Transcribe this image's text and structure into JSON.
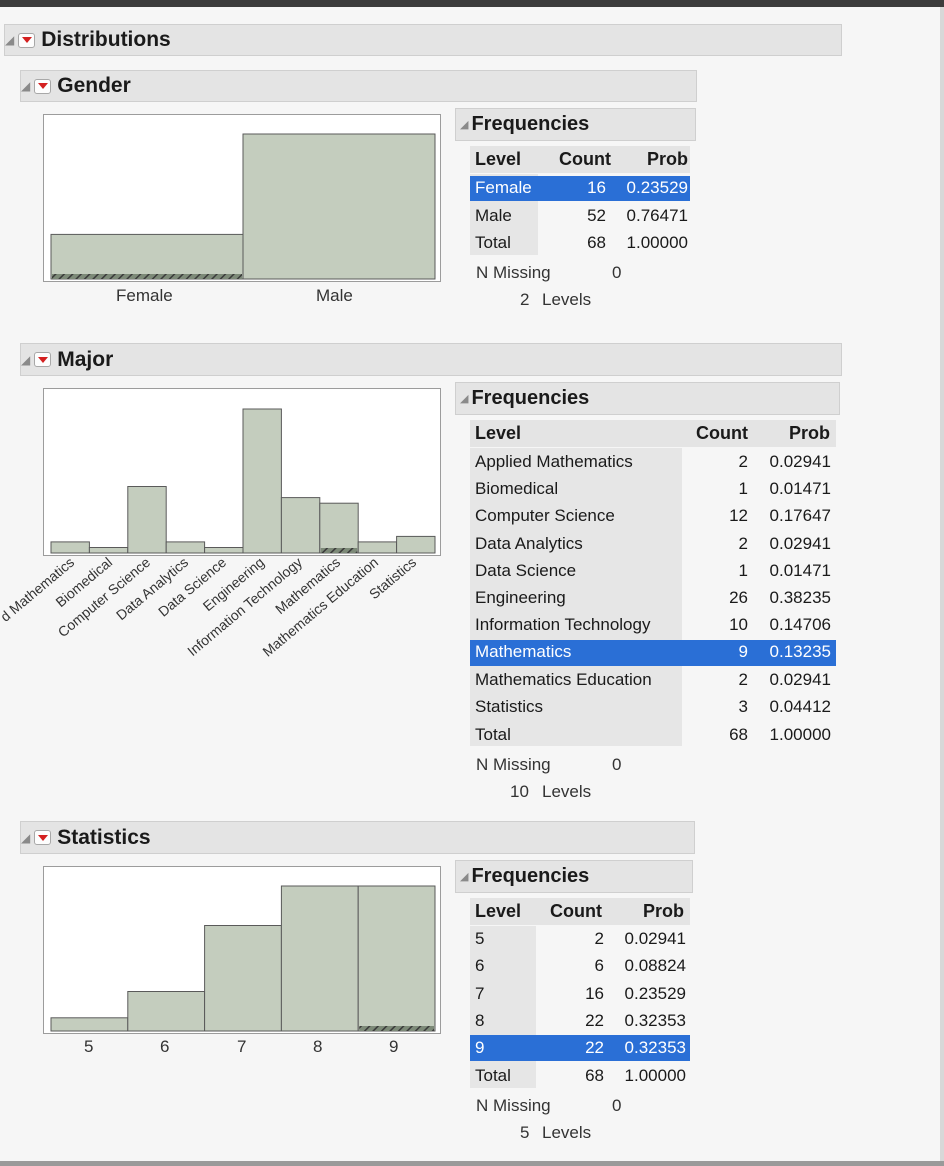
{
  "title": "Distributions",
  "colors": {
    "bar_fill": "#c4cdbe",
    "bar_stroke": "#5a5a5a",
    "selected_row": "#2a6fd6",
    "header_bg": "#e4e4e4"
  },
  "icons": {
    "collapse": "disclosure-triangle-icon",
    "menu": "red-dropdown-menu-icon"
  },
  "freq_title": "Frequencies",
  "cols": {
    "level": "Level",
    "count": "Count",
    "prob": "Prob"
  },
  "missing_label": "N Missing",
  "levels_word": "Levels",
  "sections": {
    "gender": {
      "title": "Gender",
      "selected": "Female",
      "rows": [
        {
          "level": "Female",
          "count": "16",
          "prob": "0.23529"
        },
        {
          "level": "Male",
          "count": "52",
          "prob": "0.76471"
        }
      ],
      "total": {
        "level": "Total",
        "count": "68",
        "prob": "1.00000"
      },
      "n_missing": "0",
      "n_levels": "2"
    },
    "major": {
      "title": "Major",
      "selected": "Mathematics",
      "rows": [
        {
          "level": "Applied Mathematics",
          "count": "2",
          "prob": "0.02941"
        },
        {
          "level": "Biomedical",
          "count": "1",
          "prob": "0.01471"
        },
        {
          "level": "Computer Science",
          "count": "12",
          "prob": "0.17647"
        },
        {
          "level": "Data Analytics",
          "count": "2",
          "prob": "0.02941"
        },
        {
          "level": "Data Science",
          "count": "1",
          "prob": "0.01471"
        },
        {
          "level": "Engineering",
          "count": "26",
          "prob": "0.38235"
        },
        {
          "level": "Information Technology",
          "count": "10",
          "prob": "0.14706"
        },
        {
          "level": "Mathematics",
          "count": "9",
          "prob": "0.13235"
        },
        {
          "level": "Mathematics Education",
          "count": "2",
          "prob": "0.02941"
        },
        {
          "level": "Statistics",
          "count": "3",
          "prob": "0.04412"
        }
      ],
      "total": {
        "level": "Total",
        "count": "68",
        "prob": "1.00000"
      },
      "n_missing": "0",
      "n_levels": "10",
      "axis_labels": [
        "d Mathematics",
        "Biomedical",
        "Computer Science",
        "Data Analytics",
        "Data Science",
        "Engineering",
        "Information Technology",
        "Mathematics",
        "Mathematics Education",
        "Statistics"
      ]
    },
    "statistics": {
      "title": "Statistics",
      "selected": "9",
      "rows": [
        {
          "level": "5",
          "count": "2",
          "prob": "0.02941"
        },
        {
          "level": "6",
          "count": "6",
          "prob": "0.08824"
        },
        {
          "level": "7",
          "count": "16",
          "prob": "0.23529"
        },
        {
          "level": "8",
          "count": "22",
          "prob": "0.32353"
        },
        {
          "level": "9",
          "count": "22",
          "prob": "0.32353"
        }
      ],
      "total": {
        "level": "Total",
        "count": "68",
        "prob": "1.00000"
      },
      "n_missing": "0",
      "n_levels": "5"
    }
  },
  "chart_data": [
    {
      "type": "bar",
      "categories": [
        "Female",
        "Male"
      ],
      "values": [
        16,
        52
      ],
      "highlighted": {
        "category": "Female",
        "value": 16
      },
      "grid": false
    },
    {
      "type": "bar",
      "categories": [
        "Applied Mathematics",
        "Biomedical",
        "Computer Science",
        "Data Analytics",
        "Data Science",
        "Engineering",
        "Information Technology",
        "Mathematics",
        "Mathematics Education",
        "Statistics"
      ],
      "values": [
        2,
        1,
        12,
        2,
        1,
        26,
        10,
        9,
        2,
        3
      ],
      "highlighted": {
        "category": "Mathematics",
        "value": 9
      },
      "grid": false
    },
    {
      "type": "bar",
      "categories": [
        "5",
        "6",
        "7",
        "8",
        "9"
      ],
      "values": [
        2,
        6,
        16,
        22,
        22
      ],
      "highlighted": {
        "category": "9",
        "value": 22
      },
      "grid": false
    }
  ]
}
